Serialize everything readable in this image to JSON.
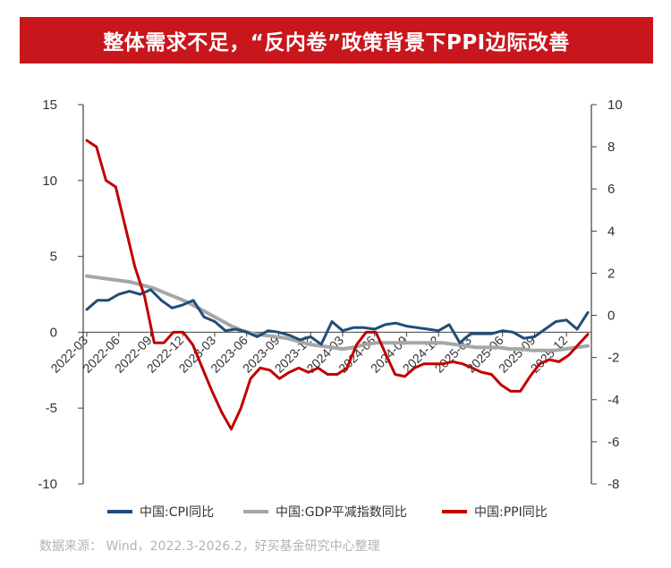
{
  "title": "整体需求不足，“反内卷”政策背景下PPI边际改善",
  "source": "数据来源： Wind，2022.3-2026.2，好买基金研究中心整理",
  "colors": {
    "title_bg": "#c8161d",
    "cpi": "#1f4e79",
    "gdp": "#a6a6a6",
    "ppi": "#c00000"
  },
  "chart_data": {
    "type": "line",
    "left_axis": {
      "ylim": [
        -10,
        15
      ],
      "ticks": [
        "15",
        "10",
        "5",
        "0",
        "-5",
        "-10"
      ]
    },
    "right_axis": {
      "ylim": [
        -8,
        10
      ],
      "ticks": [
        "10",
        "8",
        "6",
        "4",
        "2",
        "0",
        "-2",
        "-4",
        "-6",
        "-8"
      ]
    },
    "x_tick_labels": [
      "2022-03",
      "2022-06",
      "2022-09",
      "2022-12",
      "2023-03",
      "2023-06",
      "2023-09",
      "2023-12",
      "2024-03",
      "2024-06",
      "2024-09",
      "2024-12",
      "2025-03",
      "2025-06",
      "2025-09",
      "2025-12"
    ],
    "x_start": "2022-03",
    "series": [
      {
        "name": "中国:CPI同比",
        "axis": "left",
        "values": [
          1.5,
          2.1,
          2.1,
          2.5,
          2.7,
          2.5,
          2.8,
          2.1,
          1.6,
          1.8,
          2.1,
          1.0,
          0.7,
          0.1,
          0.2,
          0.0,
          -0.3,
          0.1,
          0.0,
          -0.2,
          -0.5,
          -0.3,
          -0.8,
          0.7,
          0.1,
          0.3,
          0.3,
          0.2,
          0.5,
          0.6,
          0.4,
          0.3,
          0.2,
          0.1,
          0.5,
          -0.7,
          -0.1,
          -0.1,
          -0.1,
          0.1,
          0.0,
          -0.4,
          -0.3,
          0.2,
          0.7,
          0.8,
          0.2,
          1.3
        ]
      },
      {
        "name": "中国:GDP平减指数同比",
        "axis": "left",
        "values": [
          3.7,
          3.6,
          3.5,
          3.4,
          3.3,
          3.1,
          2.9,
          2.6,
          2.3,
          2.0,
          1.6,
          1.2,
          0.8,
          0.4,
          0.1,
          -0.1,
          -0.2,
          -0.3,
          -0.4,
          -0.6,
          -0.8,
          -0.9,
          -1.0,
          -1.1,
          -1.0,
          -0.8,
          -0.7,
          -0.7,
          -0.7,
          -0.7,
          -0.7,
          -0.7,
          -0.7,
          -0.8,
          -0.9,
          -1.0,
          -1.0,
          -1.0,
          -1.1,
          -1.1,
          -1.2,
          -1.2,
          -1.2,
          -1.1,
          -1.0,
          -0.9
        ]
      },
      {
        "name": "中国:PPI同比",
        "axis": "right",
        "values": [
          8.3,
          8.0,
          6.4,
          6.1,
          4.2,
          2.3,
          0.9,
          -1.3,
          -1.3,
          -0.8,
          -0.8,
          -1.4,
          -2.5,
          -3.6,
          -4.6,
          -5.4,
          -4.4,
          -3.0,
          -2.5,
          -2.6,
          -3.0,
          -2.7,
          -2.5,
          -2.7,
          -2.5,
          -2.8,
          -2.8,
          -2.5,
          -1.4,
          -0.8,
          -0.8,
          -1.8,
          -2.8,
          -2.9,
          -2.5,
          -2.3,
          -2.3,
          -2.3,
          -2.2,
          -2.3,
          -2.5,
          -2.7,
          -2.8,
          -3.3,
          -3.6,
          -3.6,
          -2.9,
          -2.3,
          -2.1,
          -2.2,
          -1.9,
          -1.4,
          -0.9
        ]
      }
    ]
  },
  "legend": [
    {
      "label": "中国:CPI同比",
      "color": "#1f4e79"
    },
    {
      "label": "中国:GDP平减指数同比",
      "color": "#a6a6a6"
    },
    {
      "label": "中国:PPI同比",
      "color": "#c00000"
    }
  ]
}
